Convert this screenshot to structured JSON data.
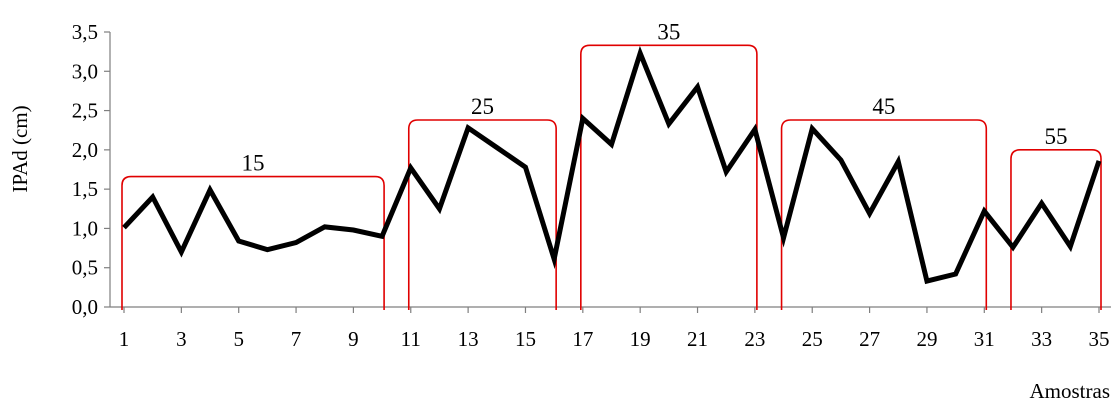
{
  "chart_data": {
    "type": "line",
    "xlabel": "Amostras",
    "ylabel": "IPAd (cm)",
    "ylim": [
      0,
      3.5
    ],
    "xlim": [
      1,
      35
    ],
    "y_ticks": [
      "0,0",
      "0,5",
      "1,0",
      "1,5",
      "2,0",
      "2,5",
      "3,0",
      "3,5"
    ],
    "x_ticks": [
      "1",
      "3",
      "5",
      "7",
      "9",
      "11",
      "13",
      "15",
      "17",
      "19",
      "21",
      "23",
      "25",
      "27",
      "29",
      "31",
      "33",
      "35"
    ],
    "grid": false,
    "legend": "none",
    "line_color": "#000000",
    "bracket_color": "#e00000",
    "x": [
      1,
      2,
      3,
      4,
      5,
      6,
      7,
      8,
      9,
      10,
      11,
      12,
      13,
      14,
      15,
      16,
      17,
      18,
      19,
      20,
      21,
      22,
      23,
      24,
      25,
      26,
      27,
      28,
      29,
      30,
      31,
      32,
      33,
      34,
      35
    ],
    "values": [
      1.01,
      1.4,
      0.7,
      1.49,
      0.84,
      0.73,
      0.82,
      1.02,
      0.98,
      0.9,
      1.77,
      1.25,
      2.28,
      2.03,
      1.78,
      0.61,
      2.4,
      2.07,
      3.23,
      2.33,
      2.8,
      1.72,
      2.26,
      0.88,
      2.27,
      1.87,
      1.19,
      1.85,
      0.33,
      0.42,
      1.22,
      0.76,
      1.32,
      0.77,
      1.86
    ],
    "groups": [
      {
        "label": "15",
        "x_start": 1,
        "x_end": 10,
        "level": 1.66
      },
      {
        "label": "25",
        "x_start": 11,
        "x_end": 16,
        "level": 2.38
      },
      {
        "label": "35",
        "x_start": 17,
        "x_end": 23,
        "level": 3.33
      },
      {
        "label": "45",
        "x_start": 24,
        "x_end": 31,
        "level": 2.38
      },
      {
        "label": "55",
        "x_start": 32,
        "x_end": 35,
        "level": 2.0
      }
    ]
  }
}
